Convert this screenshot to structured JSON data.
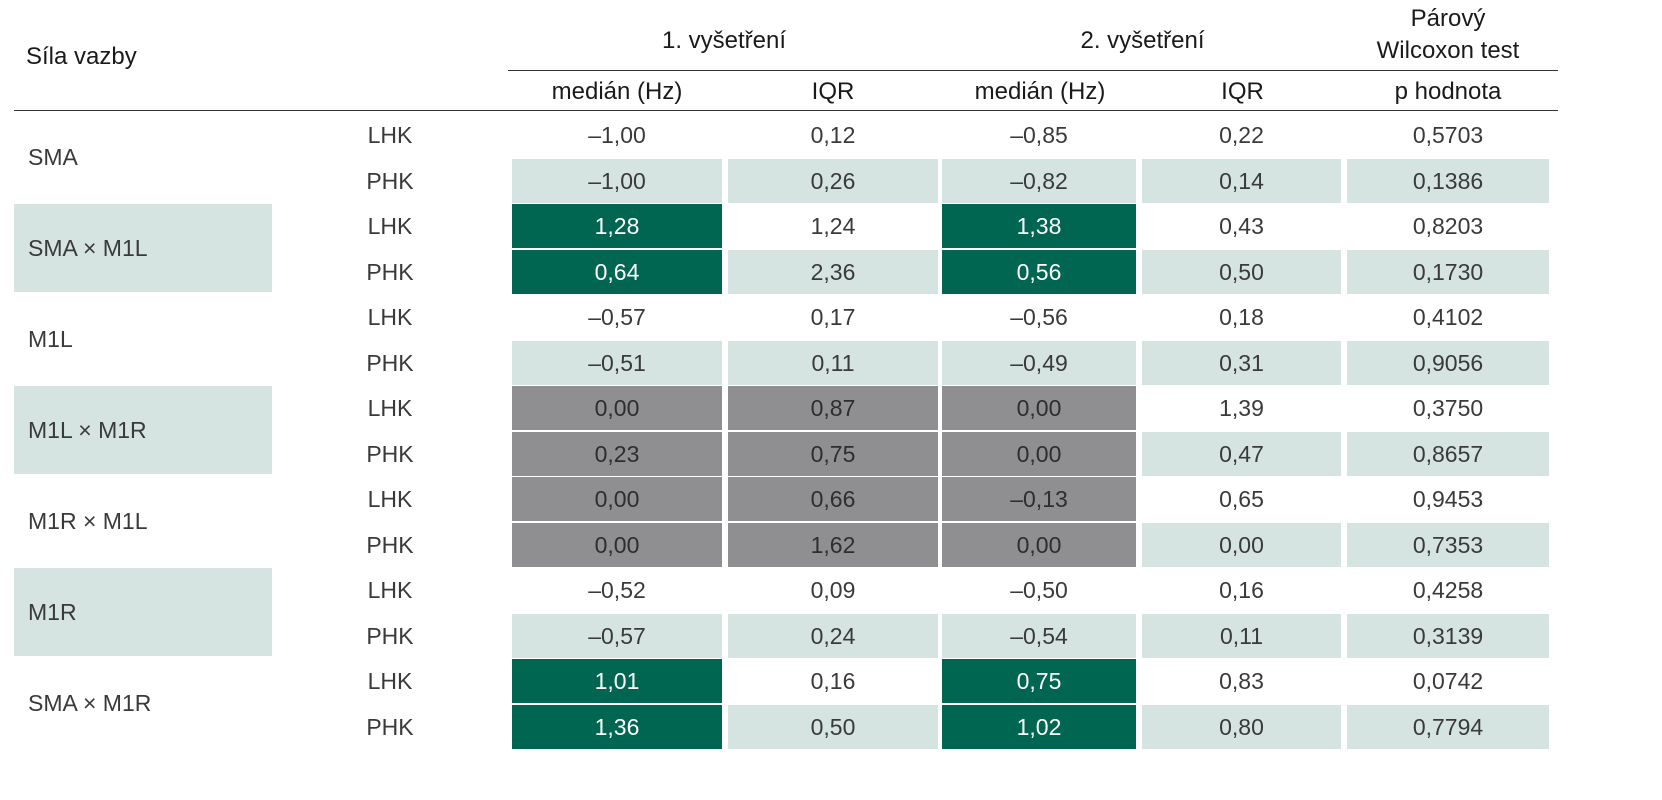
{
  "header": {
    "row_header": "Síla vazby",
    "exam1": "1. vyšetření",
    "exam2": "2. vyšetření",
    "wilcoxon_line1": "Párový",
    "wilcoxon_line2": "Wilcoxon test",
    "median1": "medián (Hz)",
    "iqr1": "IQR",
    "median2": "medián (Hz)",
    "iqr2": "IQR",
    "pvalue": "p hodnota"
  },
  "colors": {
    "light": "#d5e4e1",
    "teal": "#006652",
    "gray": "#8f8f92"
  },
  "groups": [
    {
      "name": "SMA",
      "rows": [
        {
          "side": "LHK",
          "m1": "–1,00",
          "i1": "0,12",
          "m2": "–0,85",
          "i2": "0,22",
          "p": "0,5703"
        },
        {
          "side": "PHK",
          "m1": "–1,00",
          "i1": "0,26",
          "m2": "–0,82",
          "i2": "0,14",
          "p": "0,1386"
        }
      ]
    },
    {
      "name": "SMA × M1L",
      "rows": [
        {
          "side": "LHK",
          "m1": "1,28",
          "i1": "1,24",
          "m2": "1,38",
          "i2": "0,43",
          "p": "0,8203"
        },
        {
          "side": "PHK",
          "m1": "0,64",
          "i1": "2,36",
          "m2": "0,56",
          "i2": "0,50",
          "p": "0,1730"
        }
      ]
    },
    {
      "name": "M1L",
      "rows": [
        {
          "side": "LHK",
          "m1": "–0,57",
          "i1": "0,17",
          "m2": "–0,56",
          "i2": "0,18",
          "p": "0,4102"
        },
        {
          "side": "PHK",
          "m1": "–0,51",
          "i1": "0,11",
          "m2": "–0,49",
          "i2": "0,31",
          "p": "0,9056"
        }
      ]
    },
    {
      "name": "M1L × M1R",
      "rows": [
        {
          "side": "LHK",
          "m1": "0,00",
          "i1": "0,87",
          "m2": "0,00",
          "i2": "1,39",
          "p": "0,3750"
        },
        {
          "side": "PHK",
          "m1": "0,23",
          "i1": "0,75",
          "m2": "0,00",
          "i2": "0,47",
          "p": "0,8657"
        }
      ]
    },
    {
      "name": "M1R × M1L",
      "rows": [
        {
          "side": "LHK",
          "m1": "0,00",
          "i1": "0,66",
          "m2": "–0,13",
          "i2": "0,65",
          "p": "0,9453"
        },
        {
          "side": "PHK",
          "m1": "0,00",
          "i1": "1,62",
          "m2": "0,00",
          "i2": "0,00",
          "p": "0,7353"
        }
      ]
    },
    {
      "name": "M1R",
      "rows": [
        {
          "side": "LHK",
          "m1": "–0,52",
          "i1": "0,09",
          "m2": "–0,50",
          "i2": "0,16",
          "p": "0,4258"
        },
        {
          "side": "PHK",
          "m1": "–0,57",
          "i1": "0,24",
          "m2": "–0,54",
          "i2": "0,11",
          "p": "0,3139"
        }
      ]
    },
    {
      "name": "SMA × M1R",
      "rows": [
        {
          "side": "LHK",
          "m1": "1,01",
          "i1": "0,16",
          "m2": "0,75",
          "i2": "0,83",
          "p": "0,0742"
        },
        {
          "side": "PHK",
          "m1": "1,36",
          "i1": "0,50",
          "m2": "1,02",
          "i2": "0,80",
          "p": "0,7794"
        }
      ]
    }
  ],
  "highlights": {
    "group_label_shaded": [
      false,
      true,
      false,
      true,
      false,
      true,
      false
    ],
    "teal_cells": [
      "1.0.m1",
      "1.0.m2",
      "1.1.m1",
      "1.1.m2",
      "6.0.m1",
      "6.0.m2",
      "6.1.m1",
      "6.1.m2"
    ],
    "gray_cells": [
      "3.0.m1",
      "3.0.i1",
      "3.0.m2",
      "3.1.m1",
      "3.1.i1",
      "3.1.m2",
      "4.0.m1",
      "4.0.i1",
      "4.0.m2",
      "4.1.m1",
      "4.1.i1",
      "4.1.m2"
    ]
  }
}
